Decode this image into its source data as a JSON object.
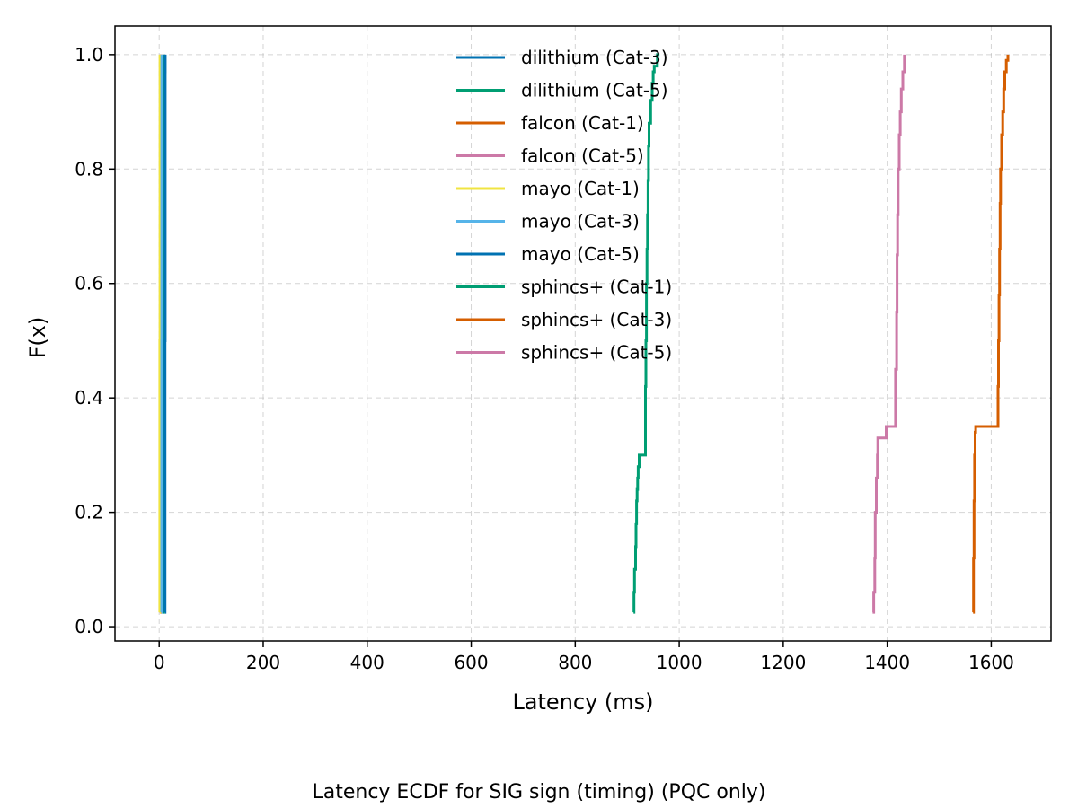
{
  "caption": "Latency ECDF for SIG sign (timing) (PQC only)",
  "chart_data": {
    "type": "line",
    "subtype": "ecdf-step",
    "title": "",
    "xlabel": "Latency (ms)",
    "ylabel": "F(x)",
    "xlim": [
      -85,
      1715
    ],
    "ylim": [
      -0.025,
      1.05
    ],
    "xticks": [
      0,
      200,
      400,
      600,
      800,
      1000,
      1200,
      1400,
      1600
    ],
    "xtick_labels": [
      "0",
      "200",
      "400",
      "600",
      "800",
      "1000",
      "1200",
      "1400",
      "1600"
    ],
    "yticks": [
      0.0,
      0.2,
      0.4,
      0.6,
      0.8,
      1.0
    ],
    "ytick_labels": [
      "0.0",
      "0.2",
      "0.4",
      "0.6",
      "0.8",
      "1.0"
    ],
    "grid": true,
    "legend_position": "upper-center",
    "series": [
      {
        "name": "dilithium (Cat-3)",
        "color": "#0072B2",
        "x": [
          10.0,
          10.0,
          10.0,
          10.5,
          10.8,
          11.2
        ],
        "y": [
          0.025,
          0.3,
          0.6,
          0.9,
          0.97,
          1.0
        ]
      },
      {
        "name": "dilithium (Cat-5)",
        "color": "#009E73",
        "x": [
          8.0,
          8.2,
          8.5,
          8.8
        ],
        "y": [
          0.025,
          0.4,
          0.8,
          1.0
        ]
      },
      {
        "name": "falcon (Cat-1)",
        "color": "#D55E00",
        "x": [
          2.0,
          2.2,
          2.5
        ],
        "y": [
          0.025,
          0.5,
          1.0
        ]
      },
      {
        "name": "falcon (Cat-5)",
        "color": "#CC79A7",
        "x": [
          3.5,
          3.7,
          4.0
        ],
        "y": [
          0.025,
          0.5,
          1.0
        ]
      },
      {
        "name": "mayo (Cat-1)",
        "color": "#F0E442",
        "x": [
          1.0,
          1.2,
          1.5
        ],
        "y": [
          0.025,
          0.5,
          1.0
        ]
      },
      {
        "name": "mayo (Cat-3)",
        "color": "#56B4E9",
        "x": [
          4.5,
          4.8,
          5.0
        ],
        "y": [
          0.025,
          0.5,
          1.0
        ]
      },
      {
        "name": "mayo (Cat-5)",
        "color": "#0072B2",
        "x": [
          11.0,
          11.3,
          11.6
        ],
        "y": [
          0.025,
          0.5,
          1.0
        ]
      },
      {
        "name": "sphincs+ (Cat-1)",
        "color": "#009E73",
        "x": [
          912,
          913,
          914,
          916,
          917,
          918,
          919,
          920,
          921,
          923,
          925,
          935,
          936,
          937,
          938,
          939,
          940,
          941,
          942,
          945,
          948,
          950,
          952,
          958,
          962
        ],
        "y": [
          0.025,
          0.06,
          0.1,
          0.14,
          0.18,
          0.22,
          0.24,
          0.26,
          0.28,
          0.3,
          0.3,
          0.42,
          0.5,
          0.6,
          0.66,
          0.72,
          0.78,
          0.84,
          0.88,
          0.92,
          0.95,
          0.97,
          0.98,
          1.0,
          1.0
        ]
      },
      {
        "name": "sphincs+ (Cat-3)",
        "color": "#D55E00",
        "x": [
          1565,
          1566,
          1567,
          1568,
          1569,
          1570,
          1612,
          1613,
          1614,
          1615,
          1616,
          1617,
          1618,
          1620,
          1622,
          1624,
          1626,
          1629,
          1632
        ],
        "y": [
          0.025,
          0.12,
          0.22,
          0.3,
          0.34,
          0.35,
          0.35,
          0.42,
          0.5,
          0.58,
          0.66,
          0.74,
          0.8,
          0.86,
          0.9,
          0.94,
          0.97,
          0.99,
          1.0
        ]
      },
      {
        "name": "sphincs+ (Cat-5)",
        "color": "#CC79A7",
        "x": [
          1372,
          1374,
          1376,
          1377,
          1379,
          1381,
          1382,
          1398,
          1414,
          1416,
          1418,
          1419,
          1420,
          1421,
          1423,
          1425,
          1427,
          1430,
          1433
        ],
        "y": [
          0.025,
          0.06,
          0.12,
          0.2,
          0.26,
          0.3,
          0.33,
          0.35,
          0.35,
          0.45,
          0.55,
          0.65,
          0.72,
          0.8,
          0.86,
          0.9,
          0.94,
          0.97,
          1.0
        ]
      }
    ]
  }
}
